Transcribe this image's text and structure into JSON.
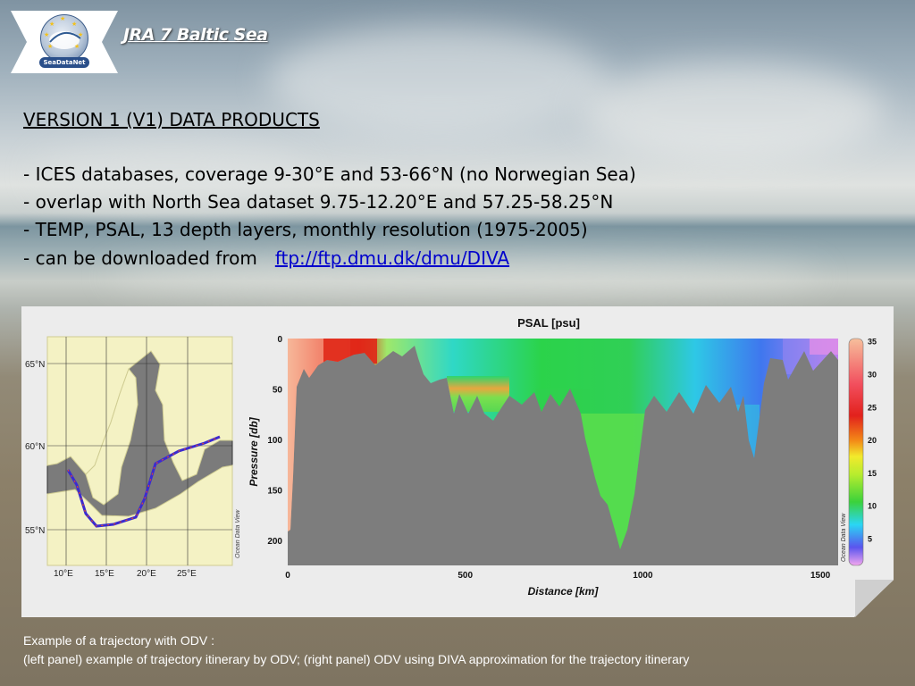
{
  "header": {
    "title": "JRA 7 Baltic Sea",
    "logo_text": "SeaDataNet"
  },
  "section_title": "VERSION 1 (V1) DATA PRODUCTS",
  "bullets": [
    "- ICES databases, coverage 9-30°E and 53-66°N (no Norwegian Sea)",
    "- overlap with North Sea dataset 9.75-12.20°E and 57.25-58.25°N",
    "- TEMP, PSAL, 13 depth layers, monthly resolution (1975-2005)",
    "- can be downloaded from"
  ],
  "download_link": "ftp://ftp.dmu.dk/dmu/DIVA",
  "map": {
    "lat_labels": [
      "65°N",
      "60°N",
      "55°N"
    ],
    "lon_labels": [
      "10°E",
      "15°E",
      "20°E",
      "25°E"
    ],
    "watermark": "Ocean Data View"
  },
  "chart_data": {
    "type": "heatmap",
    "title": "PSAL [psu]",
    "xlabel": "Distance [km]",
    "ylabel": "Pressure [db]",
    "xlim": [
      0,
      1550
    ],
    "ylim": [
      0,
      225
    ],
    "x_ticks": [
      0,
      500,
      1000,
      1500
    ],
    "y_ticks": [
      0,
      50,
      100,
      150,
      200
    ],
    "colorbar": {
      "ticks": [
        5,
        10,
        15,
        20,
        25,
        30,
        35
      ],
      "colors": [
        "#f2a6ee",
        "#5a55ee",
        "#2ad6f4",
        "#3bd23b",
        "#b6ec2e",
        "#f2ea2c",
        "#f38a17",
        "#e2211c",
        "#f24f5e",
        "#f6bf9c"
      ],
      "watermark": "Ocean Data View"
    }
  },
  "caption": {
    "line1": "Example of a trajectory with ODV :",
    "line2": "(left panel) example of trajectory itinerary by ODV; (right panel) ODV using DIVA approximation for the trajectory itinerary"
  }
}
